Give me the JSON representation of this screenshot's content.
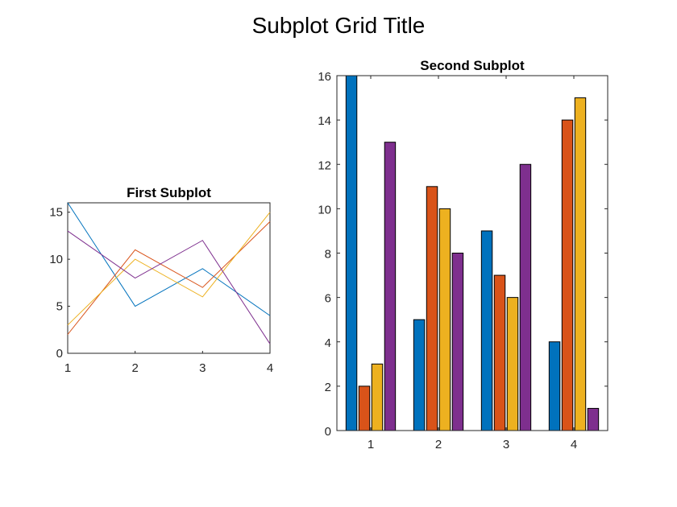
{
  "figure": {
    "title": "Subplot Grid Title"
  },
  "chart_data": [
    {
      "type": "line",
      "title": "First Subplot",
      "xlabel": "",
      "ylabel": "",
      "x": [
        1,
        2,
        3,
        4
      ],
      "xlim": [
        1,
        4
      ],
      "ylim": [
        0,
        16
      ],
      "xticks": [
        "1",
        "2",
        "3",
        "4"
      ],
      "yticks": [
        "0",
        "5",
        "10",
        "15"
      ],
      "grid": false,
      "series": [
        {
          "values": [
            16,
            5,
            9,
            4
          ],
          "color": "#0072BD"
        },
        {
          "values": [
            2,
            11,
            7,
            14
          ],
          "color": "#D95319"
        },
        {
          "values": [
            3,
            10,
            6,
            15
          ],
          "color": "#EDB120"
        },
        {
          "values": [
            13,
            8,
            12,
            1
          ],
          "color": "#7E2F8E"
        }
      ]
    },
    {
      "type": "bar",
      "title": "Second Subplot",
      "xlabel": "",
      "ylabel": "",
      "categories": [
        "1",
        "2",
        "3",
        "4"
      ],
      "ylim": [
        0,
        16
      ],
      "yticks": [
        "0",
        "2",
        "4",
        "6",
        "8",
        "10",
        "12",
        "14",
        "16"
      ],
      "grid": false,
      "series": [
        {
          "values": [
            16,
            5,
            9,
            4
          ],
          "color": "#0072BD"
        },
        {
          "values": [
            2,
            11,
            7,
            14
          ],
          "color": "#D95319"
        },
        {
          "values": [
            3,
            10,
            6,
            15
          ],
          "color": "#EDB120"
        },
        {
          "values": [
            13,
            8,
            12,
            1
          ],
          "color": "#7E2F8E"
        }
      ]
    }
  ]
}
